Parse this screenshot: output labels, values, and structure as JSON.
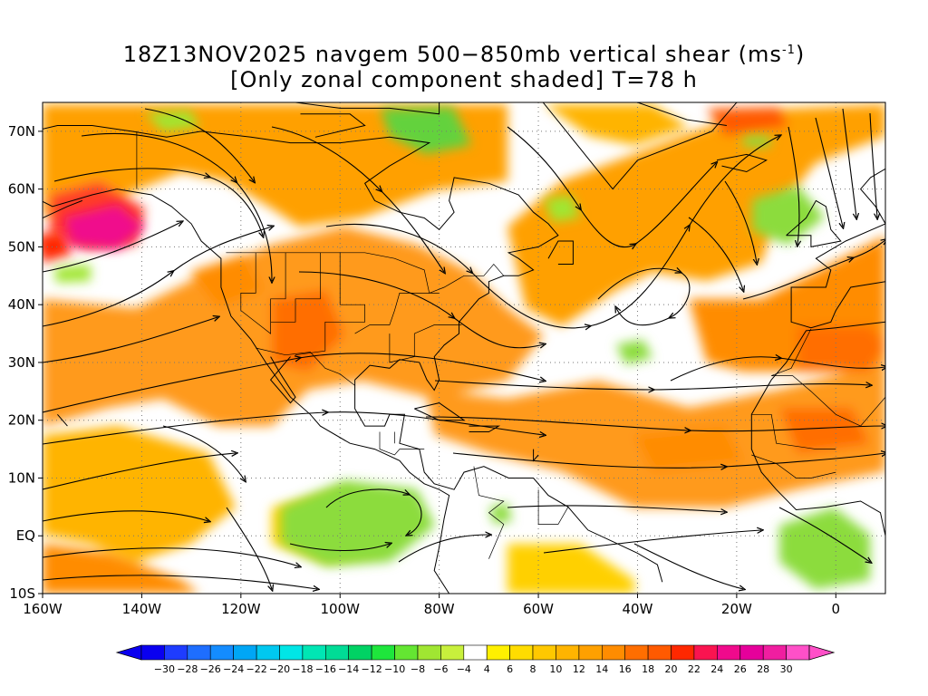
{
  "title": {
    "line1_prefix": "18Z13NOV2025 navgem 500−850mb vertical shear (ms",
    "line1_sup": "-1",
    "line1_suffix": ")",
    "line2": "[Only zonal component shaded] T=78 h"
  },
  "map": {
    "lon_labels": [
      "160W",
      "140W",
      "120W",
      "100W",
      "80W",
      "60W",
      "40W",
      "20W",
      "0"
    ],
    "lat_labels": [
      "70N",
      "60N",
      "50N",
      "40N",
      "30N",
      "20N",
      "10N",
      "EQ",
      "10S"
    ],
    "lon_values": [
      -160,
      -140,
      -120,
      -100,
      -80,
      -60,
      -40,
      -20,
      0
    ],
    "lat_values": [
      70,
      60,
      50,
      40,
      30,
      20,
      10,
      0,
      -10
    ],
    "lon_range": [
      -160,
      10
    ],
    "lat_range": [
      -10,
      75
    ],
    "gridlines": "dotted"
  },
  "colorbar": {
    "labels": [
      "−30",
      "−28",
      "−26",
      "−24",
      "−22",
      "−20",
      "−18",
      "−16",
      "−14",
      "−12",
      "−10",
      "−8",
      "−6",
      "−4",
      "4",
      "6",
      "8",
      "10",
      "12",
      "14",
      "16",
      "18",
      "20",
      "22",
      "24",
      "26",
      "28",
      "30"
    ],
    "colors": [
      "#0a00f0",
      "#1e3cff",
      "#1e6eff",
      "#148cff",
      "#00a6f5",
      "#00c8f0",
      "#00e6e6",
      "#00e6b4",
      "#00dc96",
      "#00d264",
      "#1ee63c",
      "#64e632",
      "#a0e632",
      "#c8f03c",
      "#ffffff",
      "#fff000",
      "#ffdc00",
      "#ffc800",
      "#ffb400",
      "#ffa000",
      "#ff8c00",
      "#ff6e00",
      "#ff5a00",
      "#ff2800",
      "#fa1450",
      "#f00a8c",
      "#e6009b",
      "#f01ea0",
      "#ff50c8"
    ]
  },
  "colors": {
    "negative_shade": "#8cdc3c",
    "positive_shade": "#ff9a1e"
  }
}
